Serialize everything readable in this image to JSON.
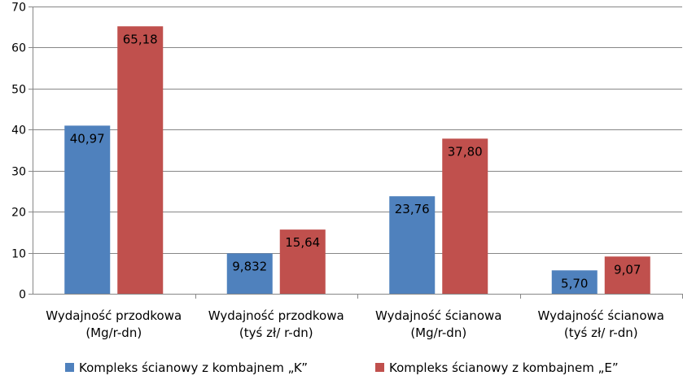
{
  "chart_data": {
    "type": "bar",
    "ylim": [
      0,
      70
    ],
    "yticks": [
      "0",
      "10",
      "20",
      "30",
      "40",
      "50",
      "60",
      "70"
    ],
    "grid": true,
    "legend_position": "bottom",
    "categories": [
      [
        "Wydajność przodkowa",
        "(Mg/r-dn)"
      ],
      [
        "Wydajność przodkowa",
        "(tyś zł/ r-dn)"
      ],
      [
        "Wydajność ścianowa",
        "(Mg/r-dn)"
      ],
      [
        "Wydajność ścianowa",
        "(tyś zł/ r-dn)"
      ]
    ],
    "series": [
      {
        "name": "Kompleks ścianowy z kombajnem „K”",
        "color": "#4F81BD",
        "values": [
          40.97,
          9.832,
          23.76,
          5.7
        ],
        "labels": [
          "40,97",
          "9,832",
          "23,76",
          "5,70"
        ]
      },
      {
        "name": "Kompleks ścianowy z kombajnem „E”",
        "color": "#C0504D",
        "values": [
          65.18,
          15.64,
          37.8,
          9.07
        ],
        "labels": [
          "65,18",
          "15,64",
          "37,80",
          "9,07"
        ]
      }
    ]
  }
}
